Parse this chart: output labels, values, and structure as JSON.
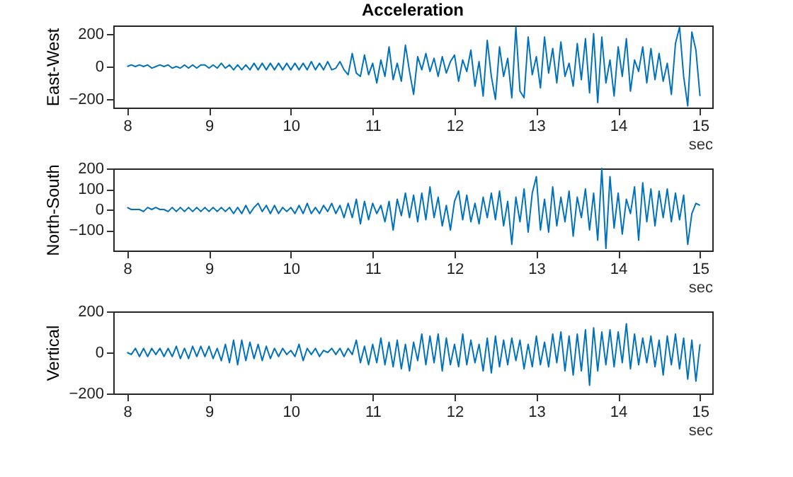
{
  "chart_data": [
    {
      "type": "line",
      "title": "Acceleration",
      "ylabel": "East-West",
      "xlabel": "sec",
      "color": "#0072bd",
      "xlim": [
        7.83,
        15.15
      ],
      "xticks": [
        8,
        9,
        10,
        11,
        12,
        13,
        14,
        15
      ],
      "ylim": [
        -250,
        250
      ],
      "yticks": [
        -200,
        0,
        200
      ],
      "grid": false,
      "x": [
        8,
        8.05,
        8.1,
        8.15,
        8.2,
        8.25,
        8.3,
        8.35,
        8.4,
        8.45,
        8.5,
        8.55,
        8.6,
        8.65,
        8.7,
        8.75,
        8.8,
        8.85,
        8.9,
        8.95,
        9,
        9.05,
        9.1,
        9.15,
        9.2,
        9.25,
        9.3,
        9.35,
        9.4,
        9.45,
        9.5,
        9.55,
        9.6,
        9.65,
        9.7,
        9.75,
        9.8,
        9.85,
        9.9,
        9.95,
        10,
        10.05,
        10.1,
        10.15,
        10.2,
        10.25,
        10.3,
        10.35,
        10.4,
        10.45,
        10.5,
        10.55,
        10.6,
        10.65,
        10.7,
        10.75,
        10.8,
        10.85,
        10.9,
        10.95,
        11,
        11.05,
        11.1,
        11.15,
        11.2,
        11.25,
        11.3,
        11.35,
        11.4,
        11.45,
        11.5,
        11.55,
        11.6,
        11.65,
        11.7,
        11.75,
        11.8,
        11.85,
        11.9,
        11.95,
        12,
        12.05,
        12.1,
        12.15,
        12.2,
        12.25,
        12.3,
        12.35,
        12.4,
        12.45,
        12.5,
        12.55,
        12.6,
        12.65,
        12.7,
        12.75,
        12.8,
        12.85,
        12.9,
        12.95,
        13,
        13.05,
        13.1,
        13.15,
        13.2,
        13.25,
        13.3,
        13.35,
        13.4,
        13.45,
        13.5,
        13.55,
        13.6,
        13.65,
        13.7,
        13.75,
        13.8,
        13.85,
        13.9,
        13.95,
        14,
        14.05,
        14.1,
        14.15,
        14.2,
        14.25,
        14.3,
        14.35,
        14.4,
        14.45,
        14.5,
        14.55,
        14.6,
        14.65,
        14.7,
        14.75,
        14.8,
        14.85,
        14.9,
        14.95,
        15
      ],
      "values": [
        0,
        10,
        0,
        10,
        0,
        10,
        -10,
        0,
        10,
        0,
        10,
        -10,
        0,
        -10,
        10,
        -10,
        10,
        -10,
        10,
        10,
        -10,
        10,
        -10,
        20,
        -10,
        10,
        -20,
        10,
        -20,
        10,
        -20,
        20,
        -20,
        20,
        -20,
        20,
        -20,
        20,
        -20,
        20,
        -20,
        20,
        -20,
        20,
        -20,
        30,
        -20,
        20,
        -20,
        30,
        -20,
        -10,
        30,
        -20,
        -50,
        80,
        -40,
        -60,
        70,
        -50,
        20,
        -100,
        40,
        -60,
        120,
        -80,
        20,
        -90,
        130,
        -30,
        -170,
        60,
        -20,
        80,
        -30,
        50,
        -60,
        60,
        -40,
        30,
        70,
        -90,
        40,
        -30,
        100,
        -120,
        30,
        -180,
        160,
        -60,
        -200,
        120,
        -60,
        50,
        -190,
        240,
        -150,
        -190,
        180,
        -50,
        60,
        -130,
        180,
        -40,
        110,
        -100,
        150,
        -60,
        20,
        -120,
        140,
        -80,
        170,
        -160,
        200,
        -220,
        180,
        -100,
        40,
        -180,
        120,
        -60,
        170,
        -150,
        40,
        -30,
        120,
        -100,
        110,
        -80,
        80,
        -90,
        20,
        -170,
        140,
        240,
        -60,
        -240,
        210,
        100,
        -180
      ]
    },
    {
      "type": "line",
      "ylabel": "North-South",
      "xlabel": "sec",
      "color": "#0072bd",
      "xlim": [
        7.83,
        15.15
      ],
      "xticks": [
        8,
        9,
        10,
        11,
        12,
        13,
        14,
        15
      ],
      "ylim": [
        -200,
        200
      ],
      "yticks": [
        -100,
        0,
        100,
        200
      ],
      "grid": false,
      "x": [
        8,
        8.05,
        8.1,
        8.15,
        8.2,
        8.25,
        8.3,
        8.35,
        8.4,
        8.45,
        8.5,
        8.55,
        8.6,
        8.65,
        8.7,
        8.75,
        8.8,
        8.85,
        8.9,
        8.95,
        9,
        9.05,
        9.1,
        9.15,
        9.2,
        9.25,
        9.3,
        9.35,
        9.4,
        9.45,
        9.5,
        9.55,
        9.6,
        9.65,
        9.7,
        9.75,
        9.8,
        9.85,
        9.9,
        9.95,
        10,
        10.05,
        10.1,
        10.15,
        10.2,
        10.25,
        10.3,
        10.35,
        10.4,
        10.45,
        10.5,
        10.55,
        10.6,
        10.65,
        10.7,
        10.75,
        10.8,
        10.85,
        10.9,
        10.95,
        11,
        11.05,
        11.1,
        11.15,
        11.2,
        11.25,
        11.3,
        11.35,
        11.4,
        11.45,
        11.5,
        11.55,
        11.6,
        11.65,
        11.7,
        11.75,
        11.8,
        11.85,
        11.9,
        11.95,
        12,
        12.05,
        12.1,
        12.15,
        12.2,
        12.25,
        12.3,
        12.35,
        12.4,
        12.45,
        12.5,
        12.55,
        12.6,
        12.65,
        12.7,
        12.75,
        12.8,
        12.85,
        12.9,
        12.95,
        13,
        13.05,
        13.1,
        13.15,
        13.2,
        13.25,
        13.3,
        13.35,
        13.4,
        13.45,
        13.5,
        13.55,
        13.6,
        13.65,
        13.7,
        13.75,
        13.8,
        13.85,
        13.9,
        13.95,
        14,
        14.05,
        14.1,
        14.15,
        14.2,
        14.25,
        14.3,
        14.35,
        14.4,
        14.45,
        14.5,
        14.55,
        14.6,
        14.65,
        14.7,
        14.75,
        14.8,
        14.85,
        14.9,
        14.95,
        15
      ],
      "values": [
        10,
        0,
        0,
        0,
        -10,
        10,
        0,
        10,
        0,
        0,
        -10,
        10,
        -10,
        10,
        -10,
        10,
        -10,
        10,
        -10,
        10,
        -10,
        10,
        -10,
        10,
        -10,
        10,
        -20,
        10,
        -20,
        20,
        -20,
        10,
        30,
        -10,
        20,
        -20,
        20,
        -20,
        10,
        -10,
        10,
        -20,
        20,
        -20,
        30,
        -20,
        10,
        -20,
        20,
        -10,
        30,
        -20,
        20,
        -40,
        30,
        -40,
        50,
        -70,
        40,
        -50,
        30,
        -20,
        20,
        -60,
        40,
        -100,
        50,
        -30,
        80,
        -40,
        70,
        -60,
        80,
        -50,
        110,
        -40,
        60,
        -80,
        20,
        -100,
        40,
        90,
        -50,
        70,
        -60,
        30,
        -70,
        60,
        -40,
        80,
        -50,
        90,
        -80,
        40,
        -170,
        60,
        -60,
        100,
        -110,
        80,
        160,
        -100,
        50,
        -110,
        110,
        -80,
        60,
        -60,
        90,
        -130,
        60,
        -40,
        100,
        -100,
        80,
        -150,
        200,
        -190,
        160,
        -90,
        80,
        -120,
        50,
        -20,
        110,
        -150,
        130,
        -60,
        100,
        -80,
        90,
        -40,
        100,
        -60,
        80,
        -50,
        70,
        -170,
        -20,
        30,
        20
      ]
    },
    {
      "type": "line",
      "ylabel": "Vertical",
      "xlabel": "sec",
      "color": "#0072bd",
      "xlim": [
        7.83,
        15.15
      ],
      "xticks": [
        8,
        9,
        10,
        11,
        12,
        13,
        14,
        15
      ],
      "ylim": [
        -200,
        200
      ],
      "yticks": [
        -200,
        0,
        200
      ],
      "grid": false,
      "x": [
        8,
        8.05,
        8.1,
        8.15,
        8.2,
        8.25,
        8.3,
        8.35,
        8.4,
        8.45,
        8.5,
        8.55,
        8.6,
        8.65,
        8.7,
        8.75,
        8.8,
        8.85,
        8.9,
        8.95,
        9,
        9.05,
        9.1,
        9.15,
        9.2,
        9.25,
        9.3,
        9.35,
        9.4,
        9.45,
        9.5,
        9.55,
        9.6,
        9.65,
        9.7,
        9.75,
        9.8,
        9.85,
        9.9,
        9.95,
        10,
        10.05,
        10.1,
        10.15,
        10.2,
        10.25,
        10.3,
        10.35,
        10.4,
        10.45,
        10.5,
        10.55,
        10.6,
        10.65,
        10.7,
        10.75,
        10.8,
        10.85,
        10.9,
        10.95,
        11,
        11.05,
        11.1,
        11.15,
        11.2,
        11.25,
        11.3,
        11.35,
        11.4,
        11.45,
        11.5,
        11.55,
        11.6,
        11.65,
        11.7,
        11.75,
        11.8,
        11.85,
        11.9,
        11.95,
        12,
        12.05,
        12.1,
        12.15,
        12.2,
        12.25,
        12.3,
        12.35,
        12.4,
        12.45,
        12.5,
        12.55,
        12.6,
        12.65,
        12.7,
        12.75,
        12.8,
        12.85,
        12.9,
        12.95,
        13,
        13.05,
        13.1,
        13.15,
        13.2,
        13.25,
        13.3,
        13.35,
        13.4,
        13.45,
        13.5,
        13.55,
        13.6,
        13.65,
        13.7,
        13.75,
        13.8,
        13.85,
        13.9,
        13.95,
        14,
        14.05,
        14.1,
        14.15,
        14.2,
        14.25,
        14.3,
        14.35,
        14.4,
        14.45,
        14.5,
        14.55,
        14.6,
        14.65,
        14.7,
        14.75,
        14.8,
        14.85,
        14.9,
        14.95,
        15
      ],
      "values": [
        0,
        -10,
        20,
        -20,
        20,
        -20,
        20,
        -10,
        20,
        -20,
        20,
        -20,
        30,
        -30,
        20,
        -30,
        30,
        -20,
        30,
        -20,
        30,
        -30,
        20,
        -40,
        40,
        -50,
        60,
        -60,
        60,
        -40,
        50,
        -30,
        40,
        -40,
        30,
        -30,
        20,
        -20,
        20,
        -10,
        10,
        -20,
        40,
        -40,
        20,
        -10,
        20,
        -20,
        10,
        0,
        20,
        -10,
        20,
        -20,
        20,
        -10,
        60,
        -50,
        30,
        -60,
        40,
        -50,
        70,
        -60,
        50,
        -70,
        60,
        -80,
        40,
        -90,
        50,
        -40,
        90,
        -60,
        80,
        -50,
        90,
        -90,
        70,
        -60,
        40,
        -70,
        90,
        -60,
        60,
        -50,
        40,
        -90,
        70,
        -100,
        80,
        -70,
        60,
        -60,
        70,
        -40,
        60,
        -80,
        40,
        -70,
        80,
        -60,
        50,
        -70,
        90,
        -50,
        100,
        -90,
        80,
        -110,
        90,
        -90,
        110,
        -160,
        120,
        -90,
        100,
        -60,
        110,
        -70,
        100,
        -50,
        140,
        -80,
        90,
        -60,
        70,
        -50,
        80,
        -70,
        60,
        -110,
        80,
        -60,
        90,
        -80,
        70,
        -130,
        60,
        -140,
        40
      ]
    }
  ]
}
